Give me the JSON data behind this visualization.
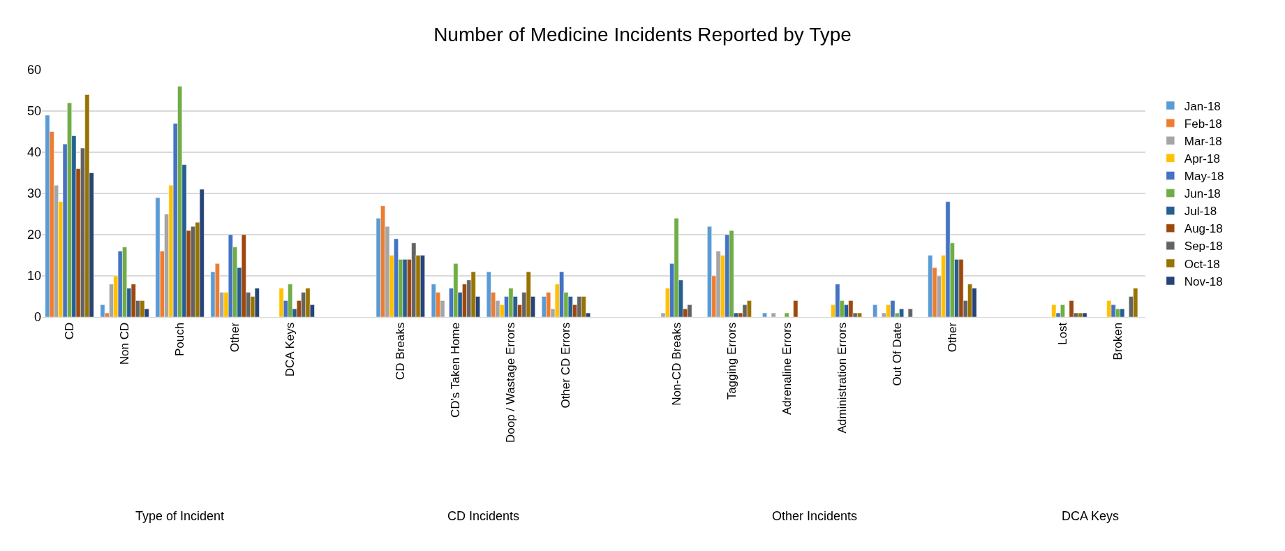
{
  "chart_data": {
    "type": "bar",
    "title": "Number of Medicine Incidents Reported by Type",
    "categories": [
      "CD",
      "Non CD",
      "Pouch",
      "Other",
      "DCA Keys",
      null,
      "CD Breaks",
      "CD's Taken Home",
      "Doop / Wastage Errors",
      "Other CD Errors",
      null,
      "Non-CD Breaks",
      "Tagging Errors",
      "Adrenaline Errors",
      "Administration Errors",
      "Out Of Date",
      "Other",
      null,
      "Lost",
      "Broken"
    ],
    "series": [
      {
        "name": "Jan-18",
        "color": "#5b9bd5",
        "values": [
          49,
          3,
          29,
          11,
          null,
          null,
          24,
          8,
          11,
          5,
          null,
          null,
          22,
          1,
          null,
          3,
          15,
          null,
          null,
          null
        ]
      },
      {
        "name": "Feb-18",
        "color": "#ed7d31",
        "values": [
          45,
          1,
          16,
          13,
          null,
          null,
          27,
          6,
          6,
          6,
          null,
          null,
          10,
          null,
          null,
          null,
          12,
          null,
          null,
          null
        ]
      },
      {
        "name": "Mar-18",
        "color": "#a5a5a5",
        "values": [
          32,
          8,
          25,
          6,
          null,
          null,
          22,
          4,
          4,
          2,
          null,
          1,
          16,
          1,
          null,
          1,
          10,
          null,
          null,
          null
        ]
      },
      {
        "name": "Apr-18",
        "color": "#ffc000",
        "values": [
          28,
          10,
          32,
          6,
          7,
          null,
          15,
          null,
          3,
          8,
          null,
          7,
          15,
          null,
          3,
          3,
          15,
          null,
          3,
          4
        ]
      },
      {
        "name": "May-18",
        "color": "#4472c4",
        "values": [
          42,
          16,
          47,
          20,
          4,
          null,
          19,
          7,
          5,
          11,
          null,
          13,
          20,
          null,
          8,
          4,
          28,
          null,
          1,
          3
        ]
      },
      {
        "name": "Jun-18",
        "color": "#70ad47",
        "values": [
          52,
          17,
          56,
          17,
          8,
          null,
          14,
          13,
          7,
          6,
          null,
          24,
          21,
          1,
          4,
          1,
          18,
          null,
          3,
          2
        ]
      },
      {
        "name": "Jul-18",
        "color": "#255e91",
        "values": [
          44,
          7,
          37,
          12,
          2,
          null,
          14,
          6,
          5,
          5,
          null,
          9,
          1,
          null,
          3,
          2,
          14,
          null,
          null,
          2
        ]
      },
      {
        "name": "Aug-18",
        "color": "#9e480e",
        "values": [
          36,
          8,
          21,
          20,
          4,
          null,
          14,
          8,
          3,
          3,
          null,
          2,
          1,
          4,
          4,
          null,
          14,
          null,
          4,
          null
        ]
      },
      {
        "name": "Sep-18",
        "color": "#636363",
        "values": [
          41,
          4,
          22,
          6,
          6,
          null,
          18,
          9,
          6,
          5,
          null,
          3,
          3,
          null,
          1,
          2,
          4,
          null,
          1,
          5
        ]
      },
      {
        "name": "Oct-18",
        "color": "#997300",
        "values": [
          54,
          4,
          23,
          5,
          7,
          null,
          15,
          11,
          11,
          5,
          null,
          null,
          4,
          null,
          1,
          null,
          8,
          null,
          1,
          7
        ]
      },
      {
        "name": "Nov-18",
        "color": "#264478",
        "values": [
          35,
          2,
          31,
          7,
          3,
          null,
          15,
          5,
          5,
          1,
          null,
          null,
          null,
          null,
          null,
          null,
          7,
          null,
          1,
          null
        ]
      }
    ],
    "annotations": [
      "Type of Incident",
      "CD Incidents",
      "Other Incidents",
      "DCA Keys"
    ],
    "ylim": [
      0,
      60
    ],
    "yticks": [
      0,
      10,
      20,
      30,
      40,
      50,
      60
    ],
    "grid": "y",
    "legend": "right"
  }
}
